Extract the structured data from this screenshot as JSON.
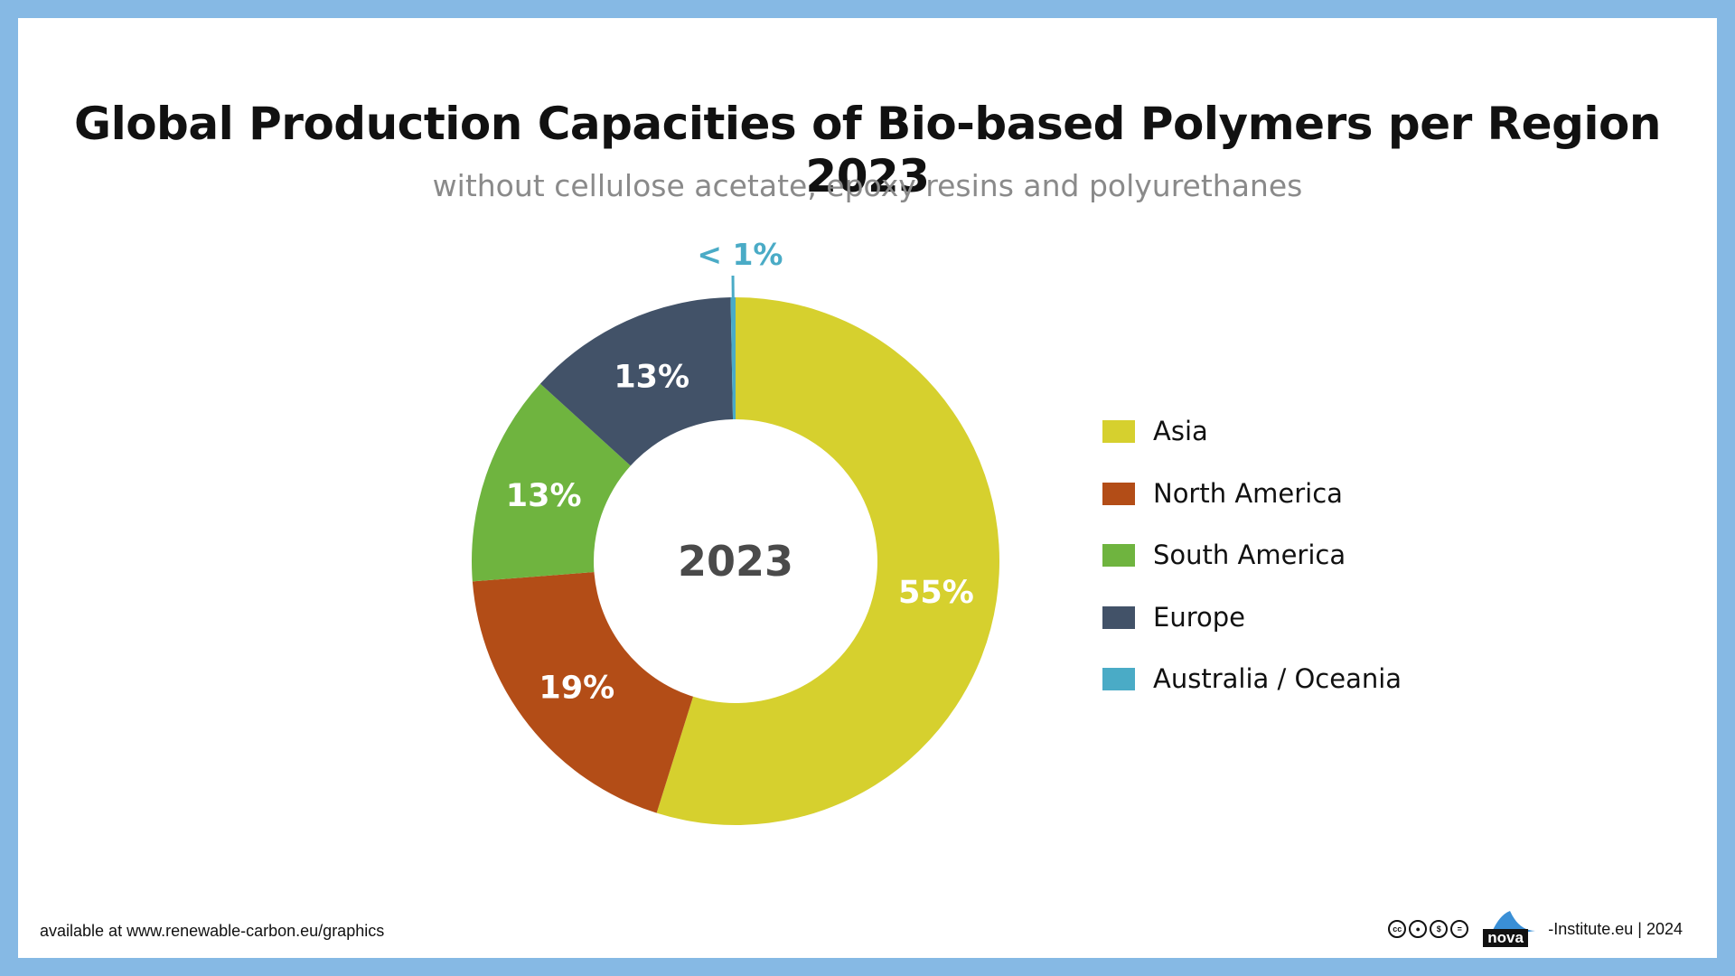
{
  "title": "Global Production Capacities of Bio-based Polymers per Region 2023",
  "subtitle": "without cellulose acetate, epoxy resins and polyurethanes",
  "chart_data": {
    "type": "pie",
    "style": "donut",
    "center_label": "2023",
    "categories": [
      "Asia",
      "North America",
      "South America",
      "Europe",
      "Australia / Oceania"
    ],
    "values": [
      55,
      19,
      13,
      13,
      0.3
    ],
    "value_labels": [
      "55%",
      "19%",
      "13%",
      "13%",
      "< 1%"
    ],
    "colors": [
      "#d6d02e",
      "#b34d17",
      "#6fb43f",
      "#425268",
      "#4aabc6"
    ],
    "legend_placement": "right"
  },
  "legend": {
    "items": [
      {
        "label": "Asia",
        "color": "#d6d02e"
      },
      {
        "label": "North America",
        "color": "#b34d17"
      },
      {
        "label": "South America",
        "color": "#6fb43f"
      },
      {
        "label": "Europe",
        "color": "#425268"
      },
      {
        "label": "Australia / Oceania",
        "color": "#4aabc6"
      }
    ]
  },
  "footer": {
    "source": "available at www.renewable-carbon.eu/graphics",
    "logo_text": "nova",
    "credit": "-Institute.eu | 2024",
    "license_icons": [
      "cc",
      "by",
      "nc",
      "nd"
    ]
  }
}
